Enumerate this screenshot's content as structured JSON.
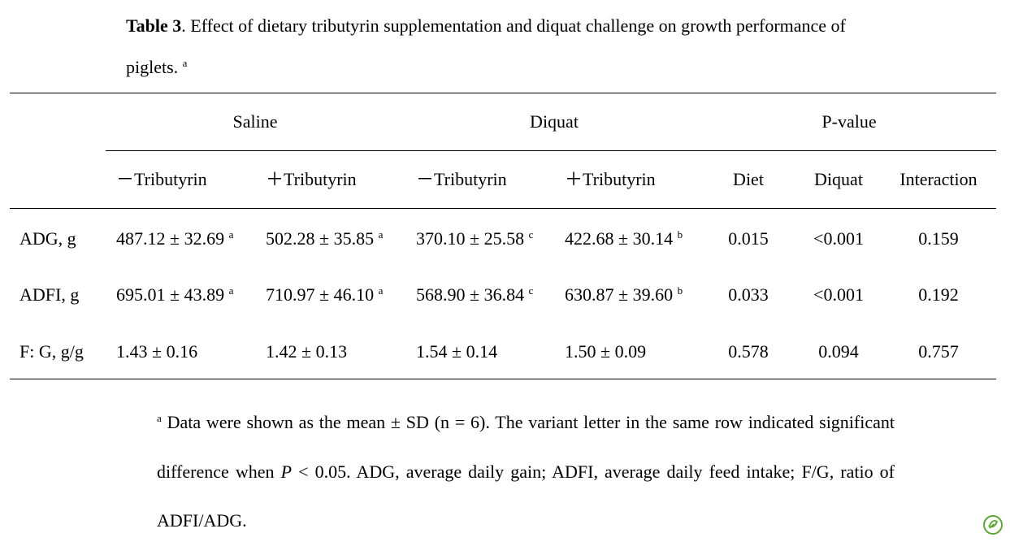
{
  "header": {
    "title_bold": "Table 3",
    "title_rest": ". Effect of dietary tributyrin supplementation and diquat challenge on growth performance of piglets.",
    "title_sup": "a"
  },
  "table": {
    "groups": [
      "Saline",
      "Diquat",
      "P-value"
    ],
    "columns": [
      "－Tributyrin",
      "＋Tributyrin",
      "－Tributyrin",
      "＋Tributyrin",
      "Diet",
      "Diquat",
      "Interaction"
    ],
    "rows": [
      {
        "label": "ADG, g",
        "cells": [
          {
            "value": "487.12 ± 32.69",
            "sup": "a"
          },
          {
            "value": "502.28 ± 35.85",
            "sup": "a"
          },
          {
            "value": "370.10 ± 25.58",
            "sup": "c"
          },
          {
            "value": "422.68 ± 30.14",
            "sup": "b"
          }
        ],
        "p_values": [
          "0.015",
          "<0.001",
          "0.159"
        ]
      },
      {
        "label": "ADFI, g",
        "cells": [
          {
            "value": "695.01 ± 43.89",
            "sup": "a"
          },
          {
            "value": "710.97 ± 46.10",
            "sup": "a"
          },
          {
            "value": "568.90 ± 36.84",
            "sup": "c"
          },
          {
            "value": "630.87 ± 39.60",
            "sup": "b"
          }
        ],
        "p_values": [
          "0.033",
          "<0.001",
          "0.192"
        ]
      },
      {
        "label": "F: G, g/g",
        "cells": [
          {
            "value": "1.43 ± 0.16"
          },
          {
            "value": "1.42 ± 0.13"
          },
          {
            "value": "1.54 ± 0.14"
          },
          {
            "value": "1.50 ± 0.09"
          }
        ],
        "p_values": [
          "0.578",
          "0.094",
          "0.757"
        ]
      }
    ]
  },
  "footnote": {
    "sup": "a",
    "text_before": " Data were shown as the mean ± SD (n = 6). The variant letter in the same row indicated significant difference when ",
    "italic": "P",
    "text_after": " < 0.05. ADG, average daily gain; ADFI, average daily feed intake; F/G, ratio of ADFI/ADG."
  }
}
